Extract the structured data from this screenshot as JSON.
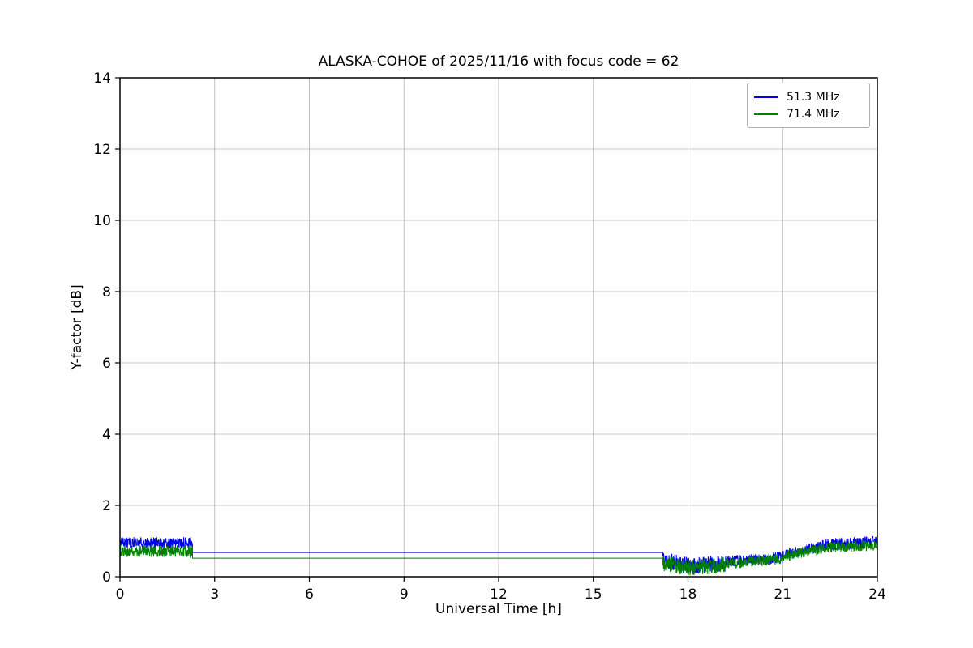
{
  "chart_data": {
    "type": "line",
    "title": "ALASKA-COHOE of 2025/11/16 with focus code = 62",
    "xlabel": "Universal Time [h]",
    "ylabel": "Y-factor [dB]",
    "xlim": [
      0,
      24
    ],
    "ylim": [
      0,
      14
    ],
    "xticks": [
      0,
      3,
      6,
      9,
      12,
      15,
      18,
      21,
      24
    ],
    "yticks": [
      0,
      2,
      4,
      6,
      8,
      10,
      12,
      14
    ],
    "grid": true,
    "grid_color": "#b0b0b0",
    "frame_color": "#000000",
    "background_color": "#ffffff",
    "legend_position": "upper right",
    "series": [
      {
        "name": "51.3 MHz",
        "color": "#0000ee",
        "segments": [
          {
            "x0": 0.0,
            "x1": 2.3,
            "y0": 0.95,
            "y1": 0.95,
            "noise": 0.16
          },
          {
            "x0": 2.3,
            "x1": 17.2,
            "y0": 0.68,
            "y1": 0.68,
            "noise": 0
          },
          {
            "x0": 17.2,
            "x1": 18.0,
            "y0": 0.45,
            "y1": 0.3,
            "noise": 0.25
          },
          {
            "x0": 18.0,
            "x1": 19.2,
            "y0": 0.3,
            "y1": 0.38,
            "noise": 0.24
          },
          {
            "x0": 19.2,
            "x1": 21.0,
            "y0": 0.42,
            "y1": 0.55,
            "noise": 0.16
          },
          {
            "x0": 21.0,
            "x1": 22.4,
            "y0": 0.6,
            "y1": 0.9,
            "noise": 0.16
          },
          {
            "x0": 22.4,
            "x1": 24.0,
            "y0": 0.9,
            "y1": 0.97,
            "noise": 0.17
          }
        ]
      },
      {
        "name": "71.4 MHz",
        "color": "#008000",
        "segments": [
          {
            "x0": 0.0,
            "x1": 2.3,
            "y0": 0.72,
            "y1": 0.72,
            "noise": 0.17
          },
          {
            "x0": 2.3,
            "x1": 17.2,
            "y0": 0.52,
            "y1": 0.52,
            "noise": 0
          },
          {
            "x0": 17.2,
            "x1": 18.0,
            "y0": 0.38,
            "y1": 0.25,
            "noise": 0.22
          },
          {
            "x0": 18.0,
            "x1": 19.2,
            "y0": 0.25,
            "y1": 0.33,
            "noise": 0.22
          },
          {
            "x0": 19.2,
            "x1": 21.0,
            "y0": 0.36,
            "y1": 0.5,
            "noise": 0.15
          },
          {
            "x0": 21.0,
            "x1": 22.4,
            "y0": 0.55,
            "y1": 0.82,
            "noise": 0.15
          },
          {
            "x0": 22.4,
            "x1": 24.0,
            "y0": 0.82,
            "y1": 0.88,
            "noise": 0.15
          }
        ]
      }
    ]
  }
}
